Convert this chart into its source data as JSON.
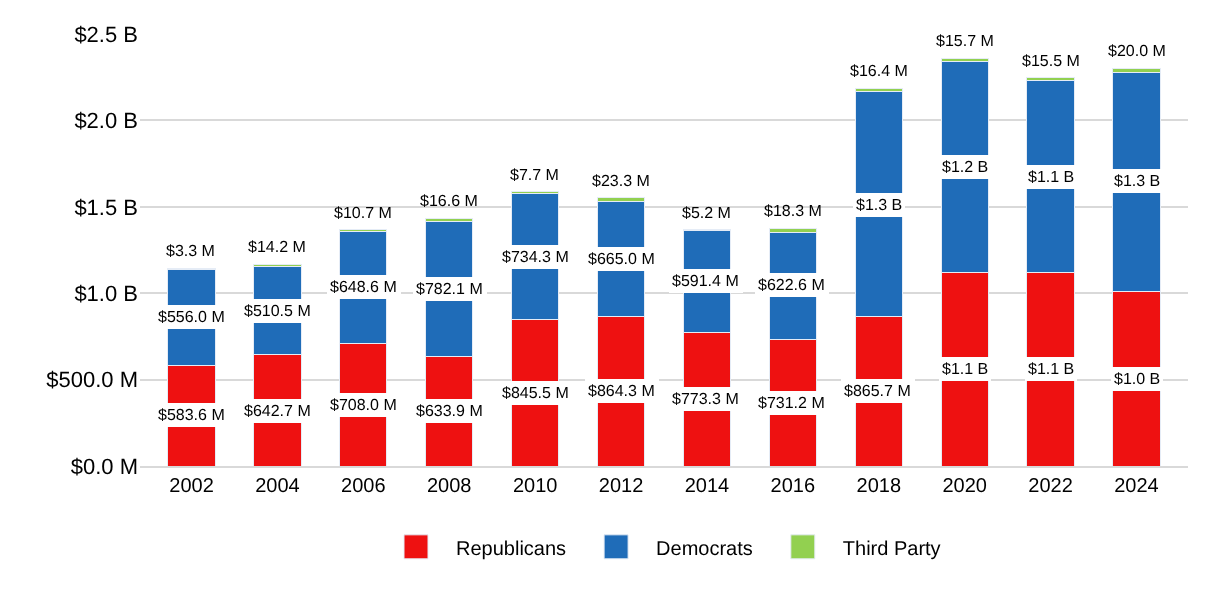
{
  "chart_data": {
    "type": "bar",
    "stacked": true,
    "categories": [
      "2002",
      "2004",
      "2006",
      "2008",
      "2010",
      "2012",
      "2014",
      "2016",
      "2018",
      "2020",
      "2022",
      "2024"
    ],
    "series": [
      {
        "name": "Republicans",
        "color": "#ee1111",
        "values": [
          583600000,
          642700000,
          708000000,
          633900000,
          845500000,
          864300000,
          773300000,
          731200000,
          865700000,
          1120000000,
          1120000000,
          1010000000
        ],
        "value_labels": [
          "$583.6 M",
          "$642.7 M",
          "$708.0 M",
          "$633.9 M",
          "$845.5 M",
          "$864.3 M",
          "$773.3 M",
          "$731.2 M",
          "$865.7 M",
          "$1.1 B",
          "$1.1 B",
          "$1.0 B"
        ]
      },
      {
        "name": "Democrats",
        "color": "#1f6cb8",
        "values": [
          556000000,
          510500000,
          648600000,
          782100000,
          734300000,
          665000000,
          591400000,
          622600000,
          1300000000,
          1220000000,
          1110000000,
          1270000000
        ],
        "value_labels": [
          "$556.0 M",
          "$510.5 M",
          "$648.6 M",
          "$782.1 M",
          "$734.3 M",
          "$665.0 M",
          "$591.4 M",
          "$622.6 M",
          "$1.3 B",
          "$1.2 B",
          "$1.1 B",
          "$1.3 B"
        ]
      },
      {
        "name": "Third Party",
        "color": "#92d050",
        "values": [
          3300000,
          14200000,
          10700000,
          16600000,
          7700000,
          23300000,
          5200000,
          18300000,
          16400000,
          15700000,
          15500000,
          20000000
        ],
        "value_labels": [
          "$3.3 M",
          "$14.2 M",
          "$10.7 M",
          "$16.6 M",
          "$7.7 M",
          "$23.3 M",
          "$5.2 M",
          "$18.3 M",
          "$16.4 M",
          "$15.7 M",
          "$15.5 M",
          "$20.0 M"
        ]
      }
    ],
    "ylim": [
      0,
      2500000000
    ],
    "yticks": [
      {
        "value": 0,
        "label": "$0.0 M"
      },
      {
        "value": 500000000,
        "label": "$500.0 M"
      },
      {
        "value": 1000000000,
        "label": "$1.0 B"
      },
      {
        "value": 1500000000,
        "label": "$1.5 B"
      },
      {
        "value": 2000000000,
        "label": "$2.0 B"
      },
      {
        "value": 2500000000,
        "label": "$2.5 B"
      }
    ],
    "grid": "y",
    "legend": "bottom"
  }
}
